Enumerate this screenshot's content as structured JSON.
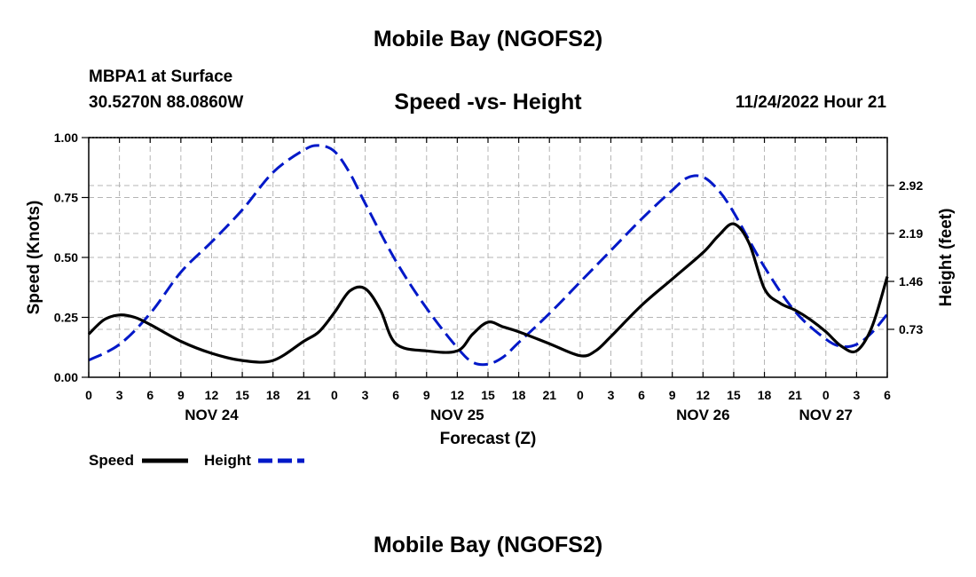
{
  "header": {
    "top_title": "Mobile Bay (NGOFS2)",
    "station": "MBPA1 at Surface",
    "coords": "30.5270N  88.0860W",
    "subtitle": "Speed -vs- Height",
    "datetime": "11/24/2022 Hour 21",
    "bottom_title": "Mobile Bay (NGOFS2)"
  },
  "chart_data": {
    "type": "line",
    "title": "Speed -vs- Height",
    "xlabel": "Forecast (Z)",
    "ylabel": "Speed (Knots)",
    "y2label": "Height (feet)",
    "x_unit": "hours from Nov 24 00Z",
    "xlim": [
      0,
      78
    ],
    "ylim": [
      0,
      1.0
    ],
    "y2lim": [
      0,
      3.65
    ],
    "grid": true,
    "legend_position": "bottom-left",
    "x_ticks": [
      0,
      3,
      6,
      9,
      12,
      15,
      18,
      21,
      24,
      27,
      30,
      33,
      36,
      39,
      42,
      45,
      48,
      51,
      54,
      57,
      60,
      63,
      66,
      69,
      72,
      75,
      78
    ],
    "x_tick_labels": [
      "0",
      "3",
      "6",
      "9",
      "12",
      "15",
      "18",
      "21",
      "0",
      "3",
      "6",
      "9",
      "12",
      "15",
      "18",
      "21",
      "0",
      "3",
      "6",
      "9",
      "12",
      "15",
      "18",
      "21",
      "0",
      "3",
      "6"
    ],
    "date_labels": [
      {
        "x": 12,
        "label": "NOV 24"
      },
      {
        "x": 36,
        "label": "NOV 25"
      },
      {
        "x": 60,
        "label": "NOV 26"
      },
      {
        "x": 72,
        "label": "NOV 27"
      }
    ],
    "y_ticks": [
      0,
      0.25,
      0.5,
      0.75,
      1.0
    ],
    "y_tick_labels": [
      "0.00",
      "0.25",
      "0.50",
      "0.75",
      "1.00"
    ],
    "y2_ticks": [
      0.73,
      1.46,
      2.19,
      2.92
    ],
    "y2_tick_labels": [
      "0.73",
      "1.46",
      "2.19",
      "2.92"
    ],
    "series": [
      {
        "name": "Speed",
        "axis": "left",
        "color": "#000000",
        "style": "solid",
        "x": [
          0,
          1.5,
          3,
          4.5,
          6,
          9,
          12,
          15,
          18,
          21,
          22.5,
          24,
          25.5,
          27,
          28.5,
          30,
          33,
          36,
          37.5,
          39,
          40.5,
          42,
          45,
          48,
          49.5,
          51,
          54,
          57,
          60,
          61.5,
          63,
          64.5,
          66,
          67.5,
          69,
          70.5,
          72,
          73.5,
          75,
          76.5,
          78
        ],
        "values": [
          0.18,
          0.24,
          0.26,
          0.25,
          0.22,
          0.15,
          0.1,
          0.07,
          0.07,
          0.15,
          0.19,
          0.27,
          0.36,
          0.37,
          0.28,
          0.14,
          0.11,
          0.11,
          0.18,
          0.23,
          0.21,
          0.19,
          0.14,
          0.09,
          0.11,
          0.17,
          0.3,
          0.41,
          0.52,
          0.59,
          0.64,
          0.56,
          0.37,
          0.31,
          0.28,
          0.24,
          0.19,
          0.13,
          0.11,
          0.21,
          0.42
        ]
      },
      {
        "name": "Height",
        "axis": "right",
        "color": "#0018c8",
        "style": "dashed",
        "x": [
          0,
          3,
          6,
          9,
          12,
          15,
          18,
          21,
          22.5,
          24,
          25.5,
          27,
          30,
          33,
          36,
          37.5,
          39,
          40.5,
          42,
          45,
          48,
          51,
          54,
          57,
          58.5,
          60,
          61.5,
          63,
          66,
          69,
          72,
          73.5,
          75,
          76.5,
          78
        ],
        "values": [
          0.26,
          0.5,
          0.97,
          1.6,
          2.06,
          2.55,
          3.12,
          3.46,
          3.53,
          3.44,
          3.11,
          2.65,
          1.77,
          1.05,
          0.45,
          0.23,
          0.2,
          0.31,
          0.53,
          0.97,
          1.45,
          1.93,
          2.41,
          2.85,
          3.04,
          3.05,
          2.85,
          2.51,
          1.68,
          1.0,
          0.58,
          0.47,
          0.5,
          0.68,
          0.96
        ]
      }
    ]
  }
}
